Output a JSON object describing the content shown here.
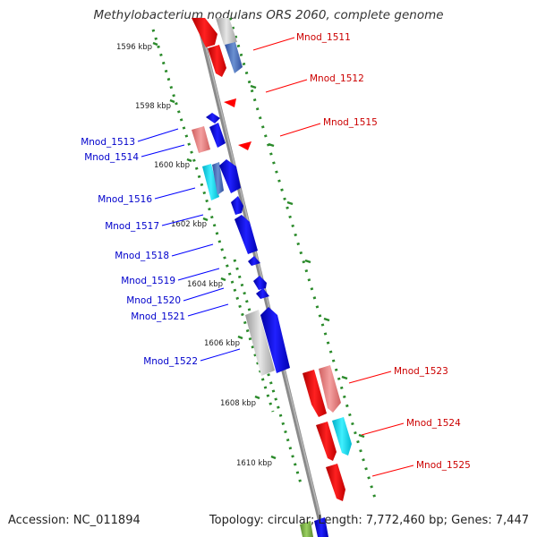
{
  "title": "Methylobacterium nodulans ORS 2060, complete genome",
  "footer": {
    "accession": "Accession: NC_011894",
    "info": "Topology: circular; Length: 7,772,460 bp; Genes: 7,447"
  },
  "scale_labels": [
    "1596 kbp",
    "1598 kbp",
    "1600 kbp",
    "1602 kbp",
    "1604 kbp",
    "1606 kbp",
    "1608 kbp",
    "1610 kbp"
  ],
  "colors": {
    "forward_cds": "#ff0000",
    "reverse_cds": "#0000ff",
    "forward_label": "#cc0000",
    "reverse_label": "#0000cc",
    "backbone": "#808080",
    "scale": "#2a8a2a"
  },
  "forward_genes": [
    "Mnod_1511",
    "Mnod_1512",
    "Mnod_1515",
    "Mnod_1523",
    "Mnod_1524",
    "Mnod_1525"
  ],
  "reverse_genes": [
    "Mnod_1513",
    "Mnod_1514",
    "Mnod_1516",
    "Mnod_1517",
    "Mnod_1518",
    "Mnod_1519",
    "Mnod_1520",
    "Mnod_1521",
    "Mnod_1522"
  ]
}
